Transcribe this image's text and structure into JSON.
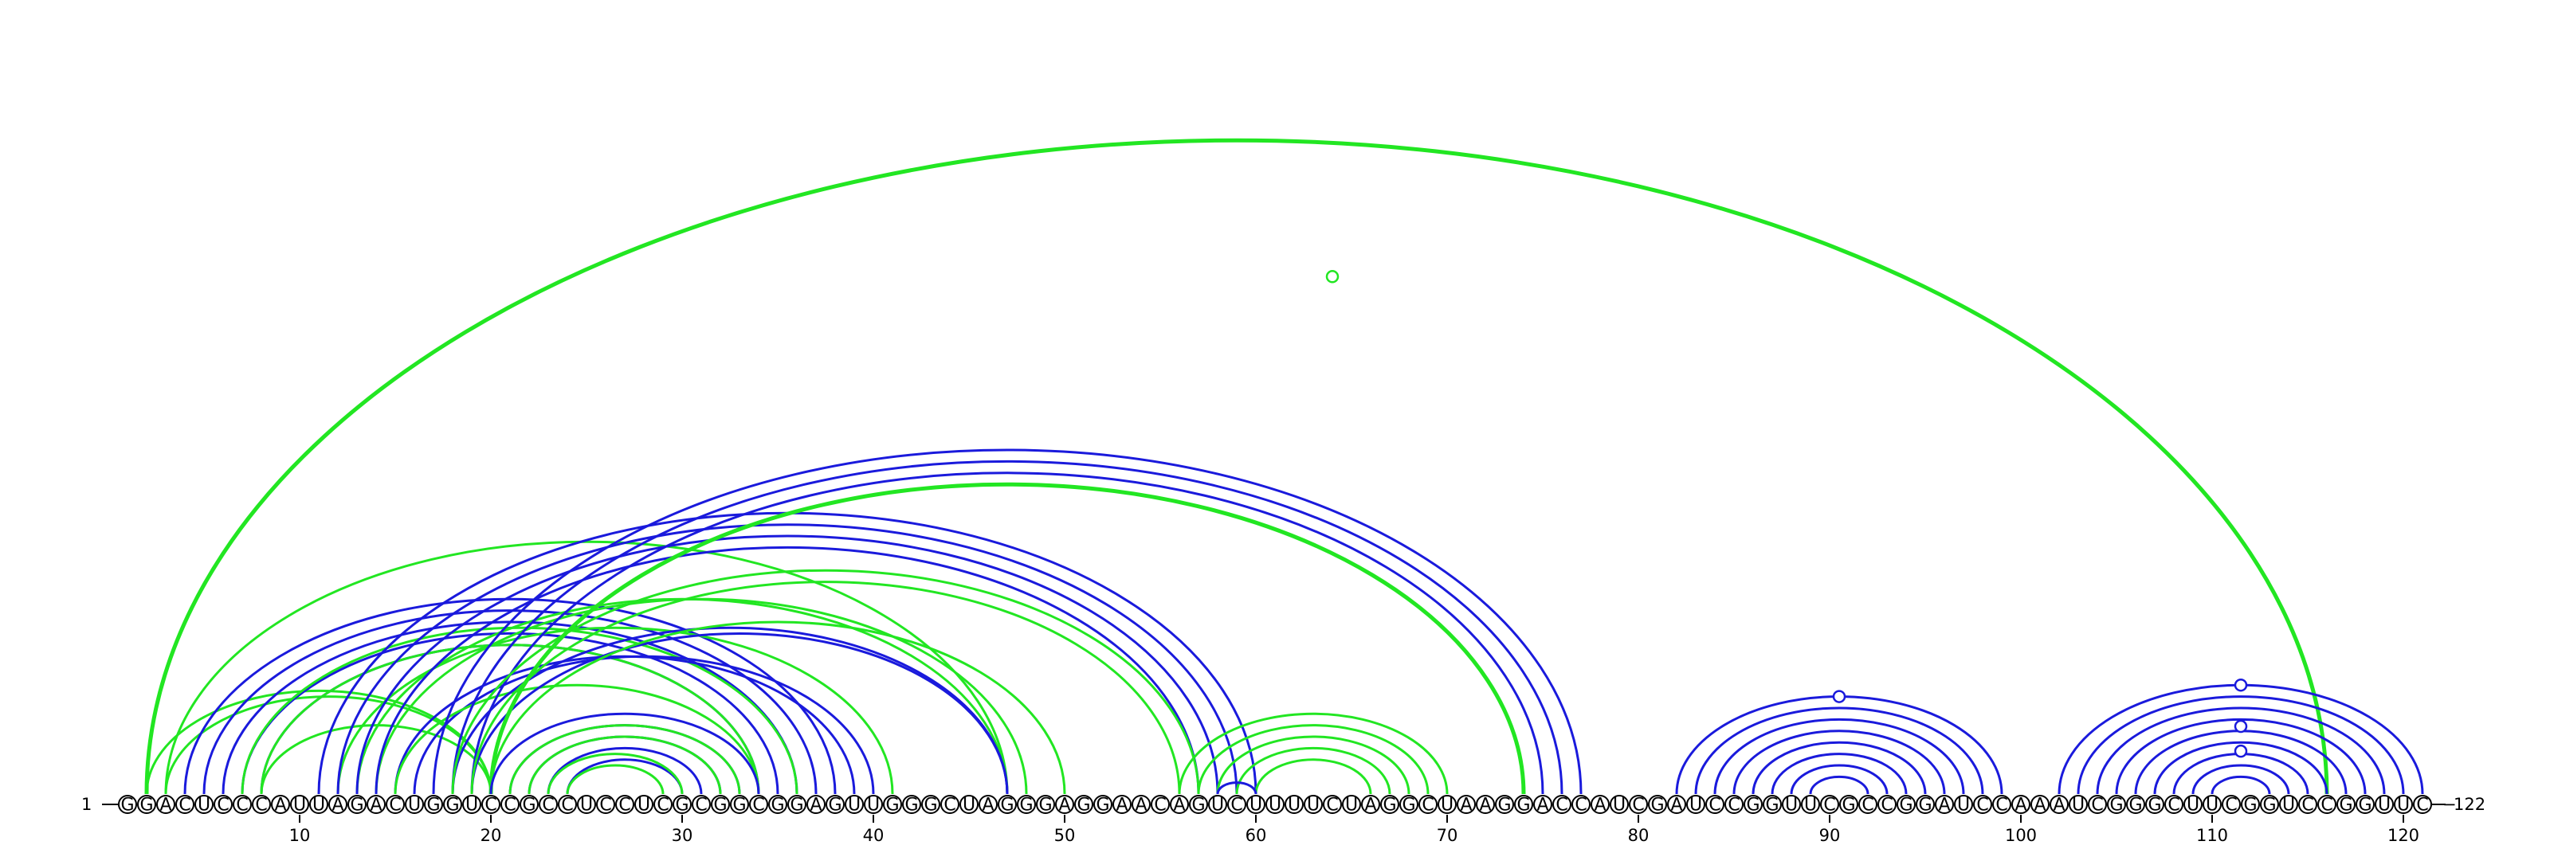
{
  "sequence": "GGACUCCCAUUAGACUGGUCCGCCUCCUCGCGGCGGAGUUGGGCUAGGGAGGAACAGUCUUUUCUAGGCUAAGGACCAUCGAUCCGGUUCGCCGGAUCCAAAUCGGGCUUCGGUCCGGUUC",
  "start_label": "1",
  "end_label": "122",
  "position_labels": [
    "10",
    "20",
    "30",
    "40",
    "50",
    "60",
    "70",
    "80",
    "90",
    "100",
    "110",
    "120"
  ],
  "colors": {
    "blue": "#1a1adc",
    "green": "#22e622"
  },
  "arcs": [
    {
      "i": 2,
      "j": 116,
      "color": "green",
      "w": 5
    },
    {
      "i": 2,
      "j": 20,
      "color": "green",
      "w": 3
    },
    {
      "i": 3,
      "j": 20,
      "color": "green",
      "w": 3
    },
    {
      "i": 3,
      "j": 47,
      "color": "green",
      "w": 3
    },
    {
      "i": 4,
      "j": 38,
      "color": "blue",
      "w": 3
    },
    {
      "i": 5,
      "j": 37,
      "color": "blue",
      "w": 3
    },
    {
      "i": 6,
      "j": 36,
      "color": "blue",
      "w": 3
    },
    {
      "i": 7,
      "j": 35,
      "color": "blue",
      "w": 3
    },
    {
      "i": 8,
      "j": 34,
      "color": "blue",
      "w": 3
    },
    {
      "i": 7,
      "j": 36,
      "color": "green",
      "w": 3
    },
    {
      "i": 8,
      "j": 34,
      "color": "green",
      "w": 3
    },
    {
      "i": 8,
      "j": 20,
      "color": "green",
      "w": 3
    },
    {
      "i": 12,
      "j": 41,
      "color": "green",
      "w": 3
    },
    {
      "i": 13,
      "j": 47,
      "color": "green",
      "w": 3
    },
    {
      "i": 15,
      "j": 39,
      "color": "blue",
      "w": 3
    },
    {
      "i": 16,
      "j": 40,
      "color": "blue",
      "w": 3
    },
    {
      "i": 15,
      "j": 34,
      "color": "green",
      "w": 3
    },
    {
      "i": 14,
      "j": 48,
      "color": "green",
      "w": 3
    },
    {
      "i": 11,
      "j": 60,
      "color": "blue",
      "w": 3
    },
    {
      "i": 12,
      "j": 59,
      "color": "blue",
      "w": 3
    },
    {
      "i": 13,
      "j": 58,
      "color": "blue",
      "w": 3
    },
    {
      "i": 14,
      "j": 57,
      "color": "blue",
      "w": 3
    },
    {
      "i": 17,
      "j": 77,
      "color": "blue",
      "w": 3
    },
    {
      "i": 18,
      "j": 76,
      "color": "blue",
      "w": 3
    },
    {
      "i": 19,
      "j": 75,
      "color": "blue",
      "w": 3
    },
    {
      "i": 18,
      "j": 47,
      "color": "blue",
      "w": 3
    },
    {
      "i": 19,
      "j": 47,
      "color": "blue",
      "w": 3
    },
    {
      "i": 20,
      "j": 74,
      "color": "green",
      "w": 5
    },
    {
      "i": 20,
      "j": 50,
      "color": "green",
      "w": 3
    },
    {
      "i": 18,
      "j": 57,
      "color": "green",
      "w": 3
    },
    {
      "i": 19,
      "j": 56,
      "color": "green",
      "w": 3
    },
    {
      "i": 20,
      "j": 34,
      "color": "blue",
      "w": 3
    },
    {
      "i": 21,
      "j": 33,
      "color": "blue",
      "w": 3
    },
    {
      "i": 22,
      "j": 32,
      "color": "blue",
      "w": 3
    },
    {
      "i": 23,
      "j": 31,
      "color": "blue",
      "w": 3
    },
    {
      "i": 24,
      "j": 30,
      "color": "blue",
      "w": 3
    },
    {
      "i": 21,
      "j": 33,
      "color": "green",
      "w": 3
    },
    {
      "i": 22,
      "j": 32,
      "color": "green",
      "w": 3
    },
    {
      "i": 23,
      "j": 30,
      "color": "green",
      "w": 3
    },
    {
      "i": 24,
      "j": 29,
      "color": "green",
      "w": 3
    },
    {
      "i": 56,
      "j": 70,
      "color": "green",
      "w": 3
    },
    {
      "i": 57,
      "j": 69,
      "color": "green",
      "w": 3
    },
    {
      "i": 58,
      "j": 68,
      "color": "green",
      "w": 3
    },
    {
      "i": 59,
      "j": 67,
      "color": "green",
      "w": 3
    },
    {
      "i": 60,
      "j": 66,
      "color": "green",
      "w": 3
    },
    {
      "i": 58,
      "j": 60,
      "color": "blue",
      "w": 3
    },
    {
      "i": 82,
      "j": 99,
      "color": "blue",
      "w": 3
    },
    {
      "i": 83,
      "j": 98,
      "color": "blue",
      "w": 3
    },
    {
      "i": 84,
      "j": 97,
      "color": "blue",
      "w": 3
    },
    {
      "i": 85,
      "j": 96,
      "color": "blue",
      "w": 3
    },
    {
      "i": 86,
      "j": 95,
      "color": "blue",
      "w": 3
    },
    {
      "i": 87,
      "j": 94,
      "color": "blue",
      "w": 3
    },
    {
      "i": 88,
      "j": 93,
      "color": "blue",
      "w": 3
    },
    {
      "i": 89,
      "j": 92,
      "color": "blue",
      "w": 3
    },
    {
      "i": 102,
      "j": 121,
      "color": "blue",
      "w": 3
    },
    {
      "i": 103,
      "j": 120,
      "color": "blue",
      "w": 3
    },
    {
      "i": 104,
      "j": 119,
      "color": "blue",
      "w": 3
    },
    {
      "i": 105,
      "j": 118,
      "color": "blue",
      "w": 3
    },
    {
      "i": 106,
      "j": 117,
      "color": "blue",
      "w": 3
    },
    {
      "i": 107,
      "j": 116,
      "color": "blue",
      "w": 3
    },
    {
      "i": 108,
      "j": 115,
      "color": "blue",
      "w": 3
    },
    {
      "i": 109,
      "j": 114,
      "color": "blue",
      "w": 3
    },
    {
      "i": 110,
      "j": 113,
      "color": "blue",
      "w": 3
    }
  ],
  "markers": [
    {
      "pos": 64,
      "level": 0.78,
      "color": "green"
    },
    {
      "pos": 90.5,
      "level": 1.0,
      "color": "blue"
    },
    {
      "pos": 111.5,
      "level": 1.0,
      "color": "blue"
    },
    {
      "pos": 111.5,
      "level": 0.55,
      "color": "blue"
    },
    {
      "pos": 111.5,
      "level": 0.28,
      "color": "blue"
    }
  ]
}
